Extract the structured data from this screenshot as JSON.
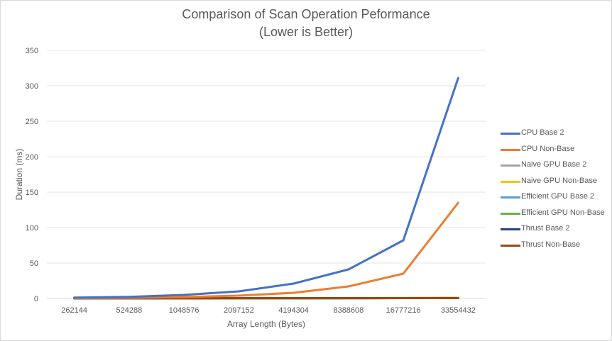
{
  "chart_data": {
    "type": "line",
    "title": "Comparison of Scan Operation Peformance",
    "subtitle": "(Lower is Better)",
    "xlabel": "Array Length  (Bytes)",
    "ylabel": "Duration (ms)",
    "categories": [
      "262144",
      "524288",
      "1048576",
      "2097152",
      "4194304",
      "8388608",
      "16777216",
      "33554432"
    ],
    "y_ticks": [
      "0",
      "50",
      "100",
      "150",
      "200",
      "250",
      "300",
      "350"
    ],
    "ylim": [
      0,
      350
    ],
    "grid": true,
    "legend_position": "right",
    "series": [
      {
        "name": "CPU Base 2",
        "color": "#4472c4",
        "values": [
          1.2,
          2.3,
          5,
          10,
          21,
          41,
          82,
          311
        ]
      },
      {
        "name": "CPU Non-Base",
        "color": "#ed7d31",
        "values": [
          0.5,
          1,
          2,
          4,
          8,
          17,
          35,
          135
        ]
      },
      {
        "name": "Naive GPU Base 2",
        "color": "#a5a5a5",
        "values": [
          0.1,
          0.15,
          0.2,
          0.3,
          0.4,
          0.5,
          0.6,
          0.7
        ]
      },
      {
        "name": "Naive GPU Non-Base",
        "color": "#ffc000",
        "values": [
          0.1,
          0.15,
          0.2,
          0.3,
          0.4,
          0.5,
          0.6,
          0.7
        ]
      },
      {
        "name": "Efficient GPU Base 2",
        "color": "#5b9bd5",
        "values": [
          0.1,
          0.12,
          0.15,
          0.2,
          0.3,
          0.4,
          0.5,
          0.6
        ]
      },
      {
        "name": "Efficient GPU Non-Base",
        "color": "#70ad47",
        "values": [
          0.1,
          0.12,
          0.15,
          0.2,
          0.3,
          0.4,
          0.5,
          0.6
        ]
      },
      {
        "name": "Thrust Base 2",
        "color": "#264478",
        "values": [
          0.3,
          0.3,
          0.3,
          0.35,
          0.4,
          0.4,
          0.5,
          0.5
        ]
      },
      {
        "name": "Thrust Non-Base",
        "color": "#9e480e",
        "values": [
          0.3,
          0.3,
          0.3,
          0.35,
          0.4,
          0.4,
          0.5,
          0.5
        ]
      }
    ]
  }
}
